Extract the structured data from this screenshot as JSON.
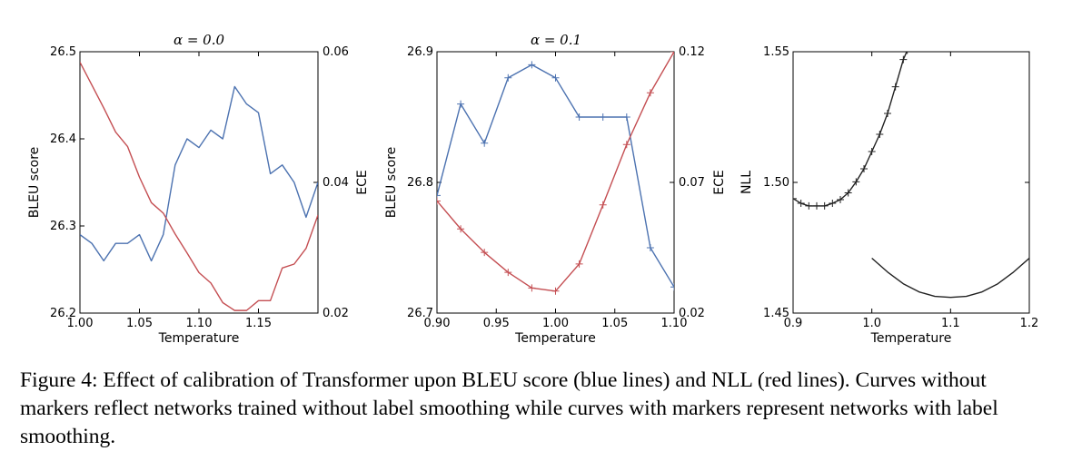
{
  "chart_data": [
    {
      "type": "line",
      "title": "α = 0.0",
      "xlabel": "Temperature",
      "ylabel": "BLEU score",
      "y2label": "ECE",
      "xlim": [
        1.0,
        1.2
      ],
      "ylim": [
        26.2,
        26.5
      ],
      "y2lim": [
        0.02,
        0.06
      ],
      "xticks": [
        "1.00",
        "1.05",
        "1.10",
        "1.15"
      ],
      "yticks": [
        "26.2",
        "26.3",
        "26.4",
        "26.5"
      ],
      "y2ticks": [
        "0.02",
        "0.04",
        "0.06"
      ],
      "series": [
        {
          "name": "BLEU score",
          "axis": "left",
          "color": "#4c72b0",
          "marker": false,
          "x": [
            1.0,
            1.01,
            1.02,
            1.03,
            1.04,
            1.05,
            1.06,
            1.07,
            1.08,
            1.09,
            1.1,
            1.11,
            1.12,
            1.13,
            1.14,
            1.15,
            1.16,
            1.17,
            1.18,
            1.19,
            1.2
          ],
          "y": [
            26.29,
            26.28,
            26.26,
            26.28,
            26.28,
            26.29,
            26.26,
            26.29,
            26.37,
            26.4,
            26.39,
            26.41,
            26.4,
            26.46,
            26.44,
            26.43,
            26.36,
            26.37,
            26.35,
            26.31,
            26.35
          ]
        },
        {
          "name": "ECE",
          "axis": "right",
          "color": "#c44e52",
          "marker": false,
          "x": [
            1.0,
            1.01,
            1.02,
            1.03,
            1.04,
            1.05,
            1.06,
            1.07,
            1.08,
            1.09,
            1.1,
            1.11,
            1.12,
            1.13,
            1.14,
            1.15,
            1.16,
            1.17,
            1.18,
            1.19,
            1.2
          ],
          "y": [
            0.0584,
            0.0549,
            0.0514,
            0.0477,
            0.0455,
            0.0408,
            0.0369,
            0.0353,
            0.0321,
            0.0292,
            0.0262,
            0.0246,
            0.0216,
            0.0204,
            0.0204,
            0.0219,
            0.0219,
            0.0269,
            0.0275,
            0.0299,
            0.035
          ]
        }
      ]
    },
    {
      "type": "line",
      "title": "α = 0.1",
      "xlabel": "Temperature",
      "ylabel": "BLEU score",
      "y2label": "ECE",
      "xlim": [
        0.9,
        1.1
      ],
      "ylim": [
        26.7,
        26.9
      ],
      "y2lim": [
        0.02,
        0.12
      ],
      "xticks": [
        "0.90",
        "0.95",
        "1.00",
        "1.05",
        "1.10"
      ],
      "yticks": [
        "26.7",
        "26.8",
        "26.9"
      ],
      "y2ticks": [
        "0.02",
        "0.07",
        "0.12"
      ],
      "series": [
        {
          "name": "BLEU score",
          "axis": "left",
          "color": "#4c72b0",
          "marker": true,
          "x": [
            0.9,
            0.92,
            0.94,
            0.96,
            0.98,
            1.0,
            1.02,
            1.04,
            1.06,
            1.08,
            1.1
          ],
          "y": [
            26.79,
            26.86,
            26.83,
            26.88,
            26.89,
            26.88,
            26.85,
            26.85,
            26.85,
            26.75,
            26.72
          ]
        },
        {
          "name": "ECE",
          "axis": "right",
          "color": "#c44e52",
          "marker": true,
          "x": [
            0.9,
            0.92,
            0.94,
            0.96,
            0.98,
            1.0,
            1.02,
            1.04,
            1.06,
            1.08,
            1.1
          ],
          "y": [
            0.0629,
            0.0522,
            0.0432,
            0.0356,
            0.0296,
            0.0284,
            0.0388,
            0.0614,
            0.0845,
            0.1043,
            0.12
          ]
        }
      ]
    },
    {
      "type": "line",
      "title": "",
      "xlabel": "Temperature",
      "ylabel": "NLL",
      "xlim": [
        0.9,
        1.2
      ],
      "ylim": [
        1.45,
        1.55
      ],
      "xticks": [
        "0.9",
        "1.0",
        "1.1",
        "1.2"
      ],
      "yticks": [
        "1.45",
        "1.50",
        "1.55"
      ],
      "series": [
        {
          "name": "NLL with label smoothing",
          "axis": "left",
          "color": "#222222",
          "marker": true,
          "x": [
            0.9,
            0.91,
            0.92,
            0.93,
            0.94,
            0.95,
            0.96,
            0.97,
            0.98,
            0.99,
            1.0,
            1.01,
            1.02,
            1.03,
            1.04,
            1.045
          ],
          "y": [
            1.4938,
            1.492,
            1.491,
            1.491,
            1.491,
            1.492,
            1.4934,
            1.496,
            1.5002,
            1.5052,
            1.5118,
            1.5184,
            1.5264,
            1.5366,
            1.547,
            1.5505
          ]
        },
        {
          "name": "NLL without label smoothing",
          "axis": "left",
          "color": "#222222",
          "marker": false,
          "x": [
            1.0,
            1.02,
            1.04,
            1.06,
            1.08,
            1.1,
            1.12,
            1.14,
            1.16,
            1.18,
            1.2
          ],
          "y": [
            1.471,
            1.4657,
            1.4612,
            1.4581,
            1.4564,
            1.456,
            1.4564,
            1.4581,
            1.4612,
            1.4657,
            1.471
          ]
        }
      ]
    }
  ],
  "caption": "Figure 4: Effect of calibration of Transformer upon BLEU score (blue lines) and NLL (red lines). Curves without markers reflect networks trained without label smoothing while curves with markers represent networks with label smoothing."
}
